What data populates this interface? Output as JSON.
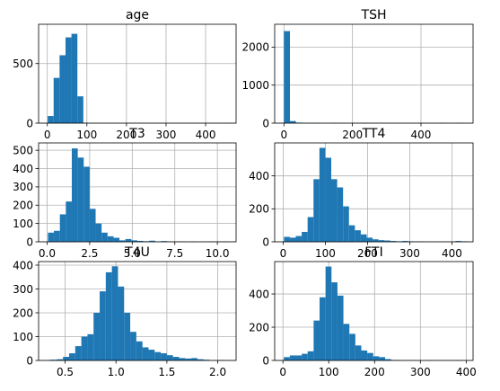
{
  "chart_data": [
    {
      "type": "bar",
      "title": "age",
      "xlim": [
        -22,
        477
      ],
      "ylim": [
        0,
        830
      ],
      "xticks": [
        0,
        100,
        200,
        300,
        400
      ],
      "xtick_labels": [
        "0",
        "100",
        "200",
        "300",
        "400"
      ],
      "yticks": [
        0,
        500
      ],
      "ytick_labels": [
        "0",
        "500"
      ],
      "grid": true,
      "color": "#1f77b4",
      "bins": [
        {
          "x0": 1,
          "x1": 16,
          "count": 60
        },
        {
          "x0": 16,
          "x1": 31,
          "count": 380
        },
        {
          "x0": 31,
          "x1": 46,
          "count": 570
        },
        {
          "x0": 46,
          "x1": 61,
          "count": 720
        },
        {
          "x0": 61,
          "x1": 76,
          "count": 750
        },
        {
          "x0": 76,
          "x1": 91,
          "count": 225
        },
        {
          "x0": 91,
          "x1": 106,
          "count": 3
        },
        {
          "x0": 451,
          "x1": 456,
          "count": 1
        }
      ]
    },
    {
      "type": "bar",
      "title": "TSH",
      "xlim": [
        -27,
        552
      ],
      "ylim": [
        0,
        2600
      ],
      "xticks": [
        0,
        200,
        400
      ],
      "xtick_labels": [
        "0",
        "200",
        "400"
      ],
      "yticks": [
        0,
        1000,
        2000
      ],
      "ytick_labels": [
        "0",
        "1000",
        "2000"
      ],
      "grid": true,
      "color": "#1f77b4",
      "bins": [
        {
          "x0": 0,
          "x1": 17.5,
          "count": 2420
        },
        {
          "x0": 17.5,
          "x1": 35,
          "count": 55
        },
        {
          "x0": 35,
          "x1": 52.5,
          "count": 15
        },
        {
          "x0": 52.5,
          "x1": 70,
          "count": 5
        },
        {
          "x0": 70,
          "x1": 87.5,
          "count": 3
        },
        {
          "x0": 87.5,
          "x1": 105,
          "count": 2
        },
        {
          "x0": 140,
          "x1": 157.5,
          "count": 1
        },
        {
          "x0": 227.5,
          "x1": 245,
          "count": 1
        },
        {
          "x0": 455,
          "x1": 472.5,
          "count": 1
        },
        {
          "x0": 507.5,
          "x1": 525,
          "count": 1
        }
      ]
    },
    {
      "type": "bar",
      "title": "T3",
      "xlim": [
        -0.5,
        11.1
      ],
      "ylim": [
        0,
        540
      ],
      "xticks": [
        0,
        2.5,
        5,
        7.5,
        10
      ],
      "xtick_labels": [
        "0.0",
        "2.5",
        "5.0",
        "7.5",
        "10.0"
      ],
      "yticks": [
        0,
        100,
        200,
        300,
        400,
        500
      ],
      "ytick_labels": [
        "0",
        "100",
        "200",
        "300",
        "400",
        "500"
      ],
      "grid": true,
      "color": "#1f77b4",
      "bins": [
        {
          "x0": 0.05,
          "x1": 0.4,
          "count": 50
        },
        {
          "x0": 0.4,
          "x1": 0.75,
          "count": 60
        },
        {
          "x0": 0.75,
          "x1": 1.1,
          "count": 150
        },
        {
          "x0": 1.1,
          "x1": 1.45,
          "count": 220
        },
        {
          "x0": 1.45,
          "x1": 1.8,
          "count": 510
        },
        {
          "x0": 1.8,
          "x1": 2.15,
          "count": 460
        },
        {
          "x0": 2.15,
          "x1": 2.5,
          "count": 410
        },
        {
          "x0": 2.5,
          "x1": 2.85,
          "count": 180
        },
        {
          "x0": 2.85,
          "x1": 3.2,
          "count": 100
        },
        {
          "x0": 3.2,
          "x1": 3.55,
          "count": 50
        },
        {
          "x0": 3.55,
          "x1": 3.9,
          "count": 30
        },
        {
          "x0": 3.9,
          "x1": 4.25,
          "count": 22
        },
        {
          "x0": 4.25,
          "x1": 4.6,
          "count": 8
        },
        {
          "x0": 4.6,
          "x1": 4.95,
          "count": 15
        },
        {
          "x0": 4.95,
          "x1": 5.3,
          "count": 8
        },
        {
          "x0": 5.3,
          "x1": 5.65,
          "count": 5
        },
        {
          "x0": 5.65,
          "x1": 6.0,
          "count": 3
        },
        {
          "x0": 6.0,
          "x1": 6.35,
          "count": 6
        },
        {
          "x0": 6.35,
          "x1": 6.7,
          "count": 2
        },
        {
          "x0": 6.7,
          "x1": 7.05,
          "count": 4
        },
        {
          "x0": 7.05,
          "x1": 7.4,
          "count": 2
        },
        {
          "x0": 7.4,
          "x1": 7.75,
          "count": 1
        },
        {
          "x0": 7.75,
          "x1": 8.1,
          "count": 2
        },
        {
          "x0": 8.45,
          "x1": 8.8,
          "count": 1
        },
        {
          "x0": 9.5,
          "x1": 9.85,
          "count": 1
        },
        {
          "x0": 10.2,
          "x1": 10.6,
          "count": 1
        }
      ]
    },
    {
      "type": "bar",
      "title": "TT4",
      "xlim": [
        -20,
        450
      ],
      "ylim": [
        0,
        600
      ],
      "xticks": [
        0,
        100,
        200,
        300,
        400
      ],
      "xtick_labels": [
        "0",
        "100",
        "200",
        "300",
        "400"
      ],
      "yticks": [
        0,
        200,
        400
      ],
      "ytick_labels": [
        "0",
        "200",
        "400"
      ],
      "grid": true,
      "color": "#1f77b4",
      "bins": [
        {
          "x0": 2,
          "x1": 16,
          "count": 30
        },
        {
          "x0": 16,
          "x1": 30,
          "count": 25
        },
        {
          "x0": 30,
          "x1": 44,
          "count": 35
        },
        {
          "x0": 44,
          "x1": 58,
          "count": 60
        },
        {
          "x0": 58,
          "x1": 72,
          "count": 150
        },
        {
          "x0": 72,
          "x1": 86,
          "count": 380
        },
        {
          "x0": 86,
          "x1": 100,
          "count": 570
        },
        {
          "x0": 100,
          "x1": 114,
          "count": 510
        },
        {
          "x0": 114,
          "x1": 128,
          "count": 380
        },
        {
          "x0": 128,
          "x1": 142,
          "count": 330
        },
        {
          "x0": 142,
          "x1": 156,
          "count": 215
        },
        {
          "x0": 156,
          "x1": 170,
          "count": 100
        },
        {
          "x0": 170,
          "x1": 184,
          "count": 70
        },
        {
          "x0": 184,
          "x1": 198,
          "count": 45
        },
        {
          "x0": 198,
          "x1": 212,
          "count": 25
        },
        {
          "x0": 212,
          "x1": 226,
          "count": 15
        },
        {
          "x0": 226,
          "x1": 240,
          "count": 10
        },
        {
          "x0": 240,
          "x1": 254,
          "count": 8
        },
        {
          "x0": 254,
          "x1": 268,
          "count": 5
        },
        {
          "x0": 268,
          "x1": 282,
          "count": 3
        },
        {
          "x0": 282,
          "x1": 296,
          "count": 5
        },
        {
          "x0": 296,
          "x1": 310,
          "count": 3
        },
        {
          "x0": 310,
          "x1": 324,
          "count": 2
        },
        {
          "x0": 324,
          "x1": 338,
          "count": 2
        },
        {
          "x0": 408,
          "x1": 422,
          "count": 5
        },
        {
          "x0": 422,
          "x1": 436,
          "count": 3
        }
      ]
    },
    {
      "type": "bar",
      "title": "T4U",
      "xlim": [
        0.24,
        2.18
      ],
      "ylim": [
        0,
        415
      ],
      "xticks": [
        0.5,
        1.0,
        1.5,
        2.0
      ],
      "xtick_labels": [
        "0.5",
        "1.0",
        "1.5",
        "2.0"
      ],
      "yticks": [
        0,
        100,
        200,
        300,
        400
      ],
      "ytick_labels": [
        "0",
        "100",
        "200",
        "300",
        "400"
      ],
      "grid": true,
      "color": "#1f77b4",
      "bins": [
        {
          "x0": 0.35,
          "x1": 0.42,
          "count": 3
        },
        {
          "x0": 0.42,
          "x1": 0.48,
          "count": 5
        },
        {
          "x0": 0.48,
          "x1": 0.54,
          "count": 15
        },
        {
          "x0": 0.54,
          "x1": 0.6,
          "count": 30
        },
        {
          "x0": 0.6,
          "x1": 0.66,
          "count": 60
        },
        {
          "x0": 0.66,
          "x1": 0.72,
          "count": 100
        },
        {
          "x0": 0.72,
          "x1": 0.78,
          "count": 110
        },
        {
          "x0": 0.78,
          "x1": 0.84,
          "count": 200
        },
        {
          "x0": 0.84,
          "x1": 0.9,
          "count": 290
        },
        {
          "x0": 0.9,
          "x1": 0.96,
          "count": 370
        },
        {
          "x0": 0.96,
          "x1": 1.02,
          "count": 395
        },
        {
          "x0": 1.02,
          "x1": 1.08,
          "count": 310
        },
        {
          "x0": 1.08,
          "x1": 1.14,
          "count": 200
        },
        {
          "x0": 1.14,
          "x1": 1.2,
          "count": 120
        },
        {
          "x0": 1.2,
          "x1": 1.26,
          "count": 80
        },
        {
          "x0": 1.26,
          "x1": 1.32,
          "count": 55
        },
        {
          "x0": 1.32,
          "x1": 1.38,
          "count": 45
        },
        {
          "x0": 1.38,
          "x1": 1.44,
          "count": 35
        },
        {
          "x0": 1.44,
          "x1": 1.5,
          "count": 30
        },
        {
          "x0": 1.5,
          "x1": 1.56,
          "count": 22
        },
        {
          "x0": 1.56,
          "x1": 1.62,
          "count": 15
        },
        {
          "x0": 1.62,
          "x1": 1.68,
          "count": 10
        },
        {
          "x0": 1.68,
          "x1": 1.74,
          "count": 8
        },
        {
          "x0": 1.74,
          "x1": 1.8,
          "count": 10
        },
        {
          "x0": 1.8,
          "x1": 1.86,
          "count": 5
        },
        {
          "x0": 1.86,
          "x1": 1.92,
          "count": 3
        },
        {
          "x0": 2.0,
          "x1": 2.06,
          "count": 2
        }
      ]
    },
    {
      "type": "bar",
      "title": "FTI",
      "xlim": [
        -18,
        415
      ],
      "ylim": [
        0,
        595
      ],
      "xticks": [
        0,
        100,
        200,
        300,
        400
      ],
      "xtick_labels": [
        "0",
        "100",
        "200",
        "300",
        "400"
      ],
      "yticks": [
        0,
        200,
        400
      ],
      "ytick_labels": [
        "0",
        "200",
        "400"
      ],
      "grid": true,
      "color": "#1f77b4",
      "bins": [
        {
          "x0": 2,
          "x1": 15,
          "count": 20
        },
        {
          "x0": 15,
          "x1": 28,
          "count": 30
        },
        {
          "x0": 28,
          "x1": 41,
          "count": 30
        },
        {
          "x0": 41,
          "x1": 54,
          "count": 40
        },
        {
          "x0": 54,
          "x1": 67,
          "count": 55
        },
        {
          "x0": 67,
          "x1": 80,
          "count": 240
        },
        {
          "x0": 80,
          "x1": 93,
          "count": 380
        },
        {
          "x0": 93,
          "x1": 106,
          "count": 565
        },
        {
          "x0": 106,
          "x1": 119,
          "count": 470
        },
        {
          "x0": 119,
          "x1": 132,
          "count": 390
        },
        {
          "x0": 132,
          "x1": 145,
          "count": 220
        },
        {
          "x0": 145,
          "x1": 158,
          "count": 160
        },
        {
          "x0": 158,
          "x1": 171,
          "count": 90
        },
        {
          "x0": 171,
          "x1": 184,
          "count": 60
        },
        {
          "x0": 184,
          "x1": 197,
          "count": 45
        },
        {
          "x0": 197,
          "x1": 210,
          "count": 25
        },
        {
          "x0": 210,
          "x1": 223,
          "count": 20
        },
        {
          "x0": 223,
          "x1": 236,
          "count": 8
        },
        {
          "x0": 236,
          "x1": 249,
          "count": 3
        },
        {
          "x0": 249,
          "x1": 262,
          "count": 2
        },
        {
          "x0": 314,
          "x1": 327,
          "count": 2
        },
        {
          "x0": 379,
          "x1": 392,
          "count": 2
        }
      ]
    }
  ]
}
